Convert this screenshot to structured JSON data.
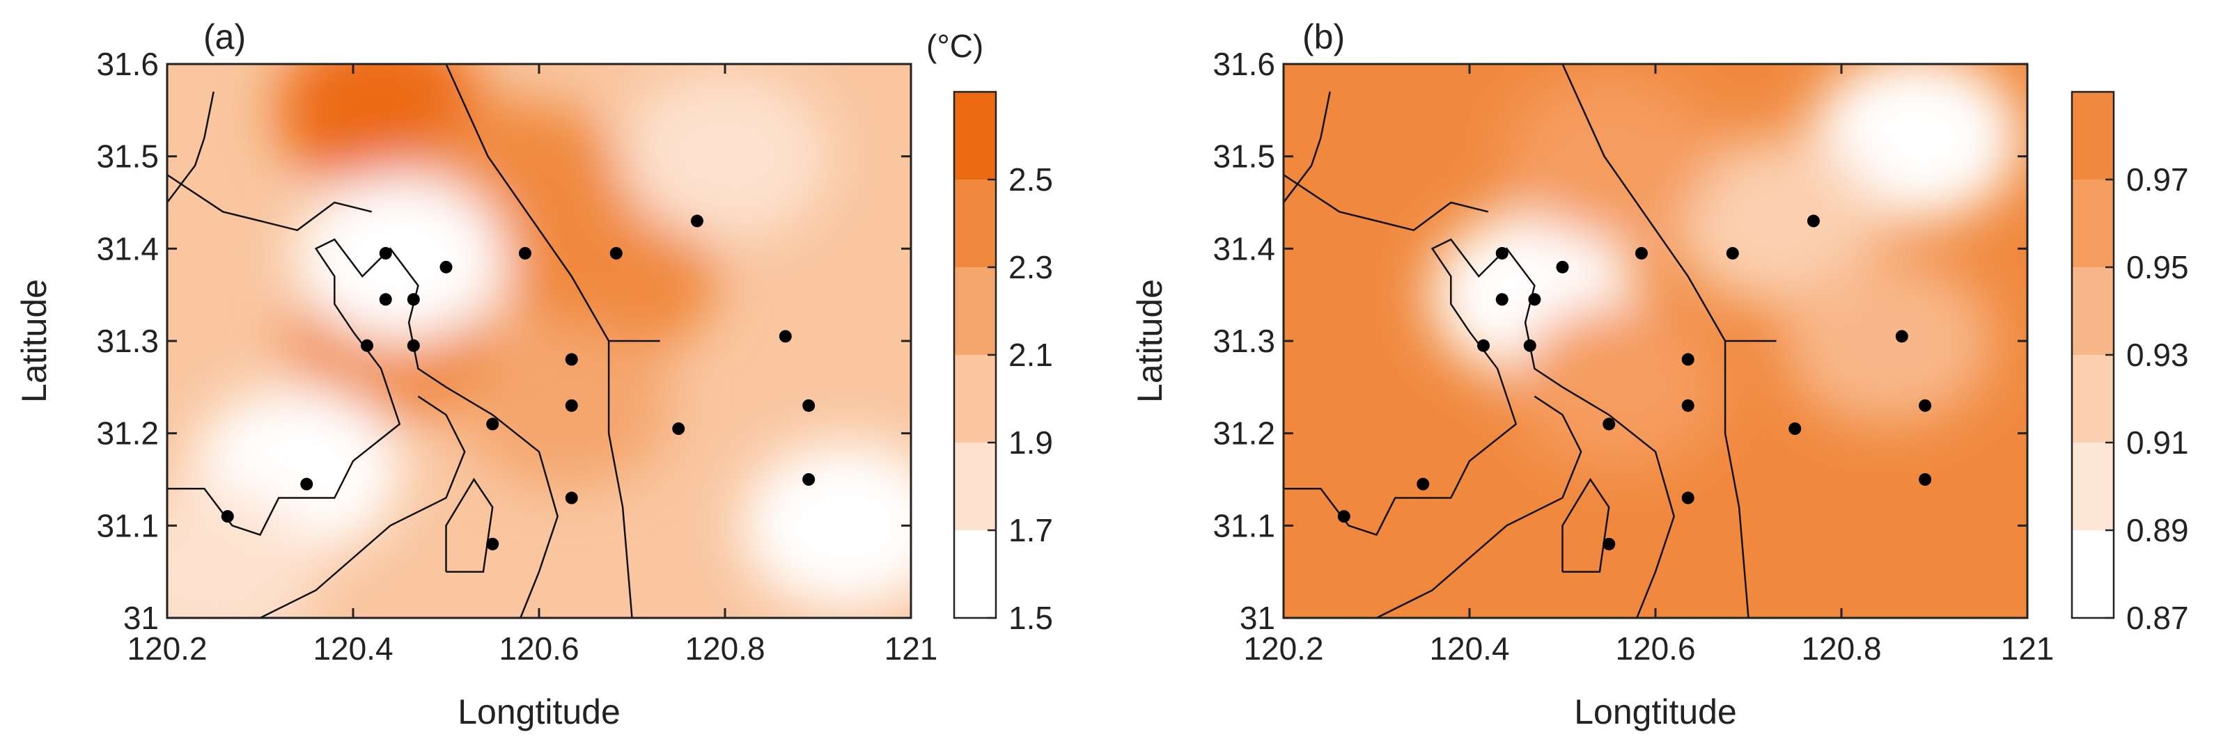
{
  "chart_data": [
    {
      "type": "heatmap",
      "panel_label": "(a)",
      "xlabel": "Longtitude",
      "ylabel": "Latitude",
      "xlim": [
        120.2,
        121
      ],
      "ylim": [
        31,
        31.6
      ],
      "xticks": [
        120.2,
        120.4,
        120.6,
        120.8,
        121
      ],
      "xtick_labels": [
        "120.2",
        "120.4",
        "120.6",
        "120.8",
        "121"
      ],
      "yticks": [
        31,
        31.1,
        31.2,
        31.3,
        31.4,
        31.5,
        31.6
      ],
      "ytick_labels": [
        "31",
        "31.1",
        "31.2",
        "31.3",
        "31.4",
        "31.5",
        "31.6"
      ],
      "colorbar": {
        "unit_label": "(°C)",
        "levels": [
          1.5,
          1.7,
          1.9,
          2.1,
          2.3,
          2.5,
          2.7
        ],
        "tick_labels": [
          "1.5",
          "1.7",
          "1.9",
          "2.1",
          "2.3",
          "2.5"
        ],
        "colors": [
          "#ffffff",
          "#fde2cf",
          "#f9c6a0",
          "#f4a66d",
          "#f0893e",
          "#ec6a12"
        ]
      },
      "background_level": 2.0,
      "field_features": [
        {
          "lon": 120.43,
          "lat": 31.55,
          "level": 2.6
        },
        {
          "lon": 120.58,
          "lat": 31.47,
          "level": 2.35
        },
        {
          "lon": 120.68,
          "lat": 31.37,
          "level": 2.35
        },
        {
          "lon": 120.63,
          "lat": 31.23,
          "level": 2.2
        },
        {
          "lon": 120.44,
          "lat": 31.3,
          "level": 2.3
        },
        {
          "lon": 120.45,
          "lat": 31.39,
          "level": 1.55
        },
        {
          "lon": 120.34,
          "lat": 31.16,
          "level": 1.55
        },
        {
          "lon": 120.93,
          "lat": 31.1,
          "level": 1.5
        },
        {
          "lon": 120.8,
          "lat": 31.5,
          "level": 1.8
        },
        {
          "lon": 120.25,
          "lat": 31.05,
          "level": 1.8
        }
      ],
      "stations": [
        {
          "lon": 120.265,
          "lat": 31.11
        },
        {
          "lon": 120.35,
          "lat": 31.145
        },
        {
          "lon": 120.415,
          "lat": 31.295
        },
        {
          "lon": 120.435,
          "lat": 31.395
        },
        {
          "lon": 120.435,
          "lat": 31.345
        },
        {
          "lon": 120.465,
          "lat": 31.345
        },
        {
          "lon": 120.465,
          "lat": 31.295
        },
        {
          "lon": 120.5,
          "lat": 31.38
        },
        {
          "lon": 120.585,
          "lat": 31.395
        },
        {
          "lon": 120.683,
          "lat": 31.395
        },
        {
          "lon": 120.77,
          "lat": 31.43
        },
        {
          "lon": 120.865,
          "lat": 31.305
        },
        {
          "lon": 120.89,
          "lat": 31.23
        },
        {
          "lon": 120.89,
          "lat": 31.15
        },
        {
          "lon": 120.635,
          "lat": 31.28
        },
        {
          "lon": 120.635,
          "lat": 31.23
        },
        {
          "lon": 120.635,
          "lat": 31.13
        },
        {
          "lon": 120.55,
          "lat": 31.21
        },
        {
          "lon": 120.75,
          "lat": 31.205
        },
        {
          "lon": 120.55,
          "lat": 31.08
        }
      ]
    },
    {
      "type": "heatmap",
      "panel_label": "(b)",
      "xlabel": "Longtitude",
      "ylabel": "Latitude",
      "xlim": [
        120.2,
        121
      ],
      "ylim": [
        31,
        31.6
      ],
      "xticks": [
        120.2,
        120.4,
        120.6,
        120.8,
        121
      ],
      "xtick_labels": [
        "120.2",
        "120.4",
        "120.6",
        "120.8",
        "121"
      ],
      "yticks": [
        31,
        31.1,
        31.2,
        31.3,
        31.4,
        31.5,
        31.6
      ],
      "ytick_labels": [
        "31",
        "31.1",
        "31.2",
        "31.3",
        "31.4",
        "31.5",
        "31.6"
      ],
      "colorbar": {
        "unit_label": "",
        "levels": [
          0.87,
          0.89,
          0.91,
          0.93,
          0.95,
          0.97,
          0.99
        ],
        "tick_labels": [
          "0.87",
          "0.89",
          "0.91",
          "0.93",
          "0.95",
          "0.97"
        ],
        "colors": [
          "#ffffff",
          "#fde6d5",
          "#fbd0b0",
          "#f8b789",
          "#f59c5f",
          "#f0893e"
        ]
      },
      "background_level": 0.975,
      "field_features": [
        {
          "lon": 120.47,
          "lat": 31.35,
          "level": 0.87
        },
        {
          "lon": 120.88,
          "lat": 31.52,
          "level": 0.87
        },
        {
          "lon": 120.73,
          "lat": 31.43,
          "level": 0.91
        },
        {
          "lon": 120.85,
          "lat": 31.3,
          "level": 0.93
        },
        {
          "lon": 120.56,
          "lat": 31.25,
          "level": 0.955
        },
        {
          "lon": 120.55,
          "lat": 31.5,
          "level": 0.955
        }
      ],
      "stations": [
        {
          "lon": 120.265,
          "lat": 31.11
        },
        {
          "lon": 120.35,
          "lat": 31.145
        },
        {
          "lon": 120.415,
          "lat": 31.295
        },
        {
          "lon": 120.435,
          "lat": 31.395
        },
        {
          "lon": 120.435,
          "lat": 31.345
        },
        {
          "lon": 120.47,
          "lat": 31.345
        },
        {
          "lon": 120.465,
          "lat": 31.295
        },
        {
          "lon": 120.5,
          "lat": 31.38
        },
        {
          "lon": 120.585,
          "lat": 31.395
        },
        {
          "lon": 120.683,
          "lat": 31.395
        },
        {
          "lon": 120.77,
          "lat": 31.43
        },
        {
          "lon": 120.865,
          "lat": 31.305
        },
        {
          "lon": 120.89,
          "lat": 31.23
        },
        {
          "lon": 120.89,
          "lat": 31.15
        },
        {
          "lon": 120.635,
          "lat": 31.28
        },
        {
          "lon": 120.635,
          "lat": 31.23
        },
        {
          "lon": 120.635,
          "lat": 31.13
        },
        {
          "lon": 120.55,
          "lat": 31.21
        },
        {
          "lon": 120.75,
          "lat": 31.205
        },
        {
          "lon": 120.55,
          "lat": 31.08
        }
      ]
    }
  ],
  "coastline": [
    {
      "name": "coastline",
      "points": [
        [
          120.5,
          31.6
        ],
        [
          120.545,
          31.5
        ],
        [
          120.635,
          31.37
        ],
        [
          120.675,
          31.3
        ],
        [
          120.73,
          31.3
        ]
      ]
    },
    {
      "name": "river-bank-north",
      "points": [
        [
          120.2,
          31.45
        ],
        [
          120.23,
          31.49
        ],
        [
          120.24,
          31.52
        ],
        [
          120.25,
          31.57
        ]
      ]
    },
    {
      "name": "river-bank-west",
      "points": [
        [
          120.2,
          31.14
        ],
        [
          120.24,
          31.14
        ],
        [
          120.27,
          31.1
        ],
        [
          120.3,
          31.09
        ],
        [
          120.32,
          31.13
        ],
        [
          120.38,
          31.13
        ],
        [
          120.4,
          31.17
        ],
        [
          120.45,
          31.21
        ],
        [
          120.43,
          31.27
        ],
        [
          120.4,
          31.31
        ],
        [
          120.38,
          31.34
        ],
        [
          120.38,
          31.37
        ],
        [
          120.36,
          31.4
        ],
        [
          120.38,
          31.41
        ],
        [
          120.41,
          31.37
        ],
        [
          120.44,
          31.4
        ],
        [
          120.47,
          31.36
        ],
        [
          120.46,
          31.32
        ],
        [
          120.47,
          31.27
        ],
        [
          120.5,
          31.25
        ],
        [
          120.55,
          31.22
        ],
        [
          120.6,
          31.18
        ],
        [
          120.62,
          31.11
        ],
        [
          120.6,
          31.05
        ],
        [
          120.58,
          31
        ]
      ]
    },
    {
      "name": "peninsula-south",
      "points": [
        [
          120.3,
          31.0
        ],
        [
          120.36,
          31.03
        ],
        [
          120.44,
          31.1
        ],
        [
          120.5,
          31.13
        ],
        [
          120.52,
          31.18
        ],
        [
          120.5,
          31.22
        ],
        [
          120.47,
          31.24
        ]
      ]
    },
    {
      "name": "island-south",
      "points": [
        [
          120.5,
          31.05
        ],
        [
          120.54,
          31.05
        ],
        [
          120.55,
          31.12
        ],
        [
          120.53,
          31.15
        ],
        [
          120.5,
          31.1
        ],
        [
          120.5,
          31.05
        ]
      ]
    },
    {
      "name": "river-channel",
      "points": [
        [
          120.675,
          31.3
        ],
        [
          120.675,
          31.2
        ],
        [
          120.69,
          31.12
        ],
        [
          120.7,
          31
        ]
      ]
    },
    {
      "name": "bank-north-lake",
      "points": [
        [
          120.2,
          31.48
        ],
        [
          120.26,
          31.44
        ],
        [
          120.3,
          31.43
        ],
        [
          120.34,
          31.42
        ],
        [
          120.38,
          31.45
        ],
        [
          120.42,
          31.44
        ]
      ]
    }
  ]
}
